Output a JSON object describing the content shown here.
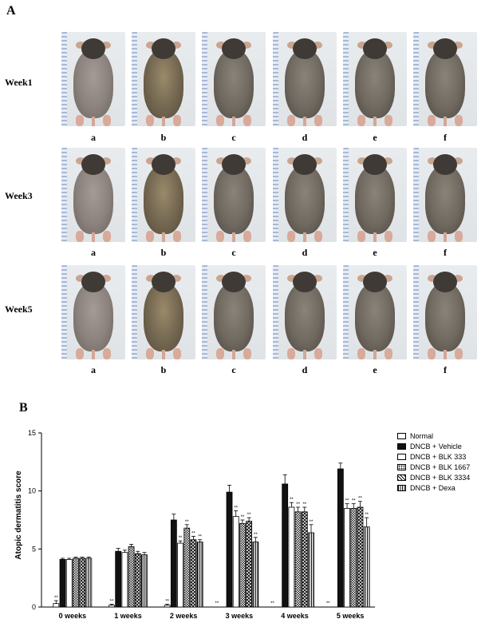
{
  "panel_a": {
    "letter": "A",
    "rows": [
      {
        "label": "Week1",
        "photos": [
          "a",
          "b",
          "c",
          "d",
          "e",
          "f"
        ]
      },
      {
        "label": "Week3",
        "photos": [
          "a",
          "b",
          "c",
          "d",
          "e",
          "f"
        ]
      },
      {
        "label": "Week5",
        "photos": [
          "a",
          "b",
          "c",
          "d",
          "e",
          "f"
        ]
      }
    ]
  },
  "panel_b": {
    "letter": "B"
  },
  "chart_data": {
    "type": "bar",
    "title": "",
    "xlabel": "",
    "ylabel": "Atopic dermatitis score",
    "ylim": [
      0,
      15
    ],
    "yticks": [
      0,
      5,
      10,
      15
    ],
    "categories": [
      "0 weeks",
      "1 weeks",
      "2 weeks",
      "3 weeks",
      "4 weeks",
      "5 weeks"
    ],
    "legend_position": "top-right",
    "series": [
      {
        "name": "Normal",
        "pattern": "open",
        "values": [
          0.3,
          0.15,
          0.15,
          0,
          0,
          0
        ],
        "errors": [
          0.25,
          0.1,
          0.1,
          0,
          0,
          0
        ],
        "sig": [
          "**",
          "**",
          "**",
          "**",
          "**",
          "**"
        ]
      },
      {
        "name": "DNCB + Vehicle",
        "pattern": "solid",
        "values": [
          4.1,
          4.8,
          7.5,
          9.9,
          10.6,
          11.9
        ],
        "errors": [
          0.1,
          0.25,
          0.5,
          0.6,
          0.8,
          0.5
        ],
        "sig": [
          "",
          "",
          "",
          "",
          "",
          ""
        ]
      },
      {
        "name": "DNCB + BLK 333",
        "pattern": "open",
        "values": [
          4.1,
          4.7,
          5.5,
          7.8,
          8.6,
          8.5
        ],
        "errors": [
          0.1,
          0.2,
          0.2,
          0.5,
          0.4,
          0.4
        ],
        "sig": [
          "",
          "",
          "**",
          "**",
          "**",
          "**"
        ]
      },
      {
        "name": "DNCB + BLK 1667",
        "pattern": "dots",
        "values": [
          4.2,
          5.2,
          6.8,
          7.2,
          8.2,
          8.5
        ],
        "errors": [
          0.1,
          0.2,
          0.3,
          0.3,
          0.4,
          0.4
        ],
        "sig": [
          "",
          "",
          "**",
          "**",
          "**",
          "**"
        ]
      },
      {
        "name": "DNCB + BLK 3334",
        "pattern": "cross",
        "values": [
          4.2,
          4.6,
          5.8,
          7.4,
          8.2,
          8.6
        ],
        "errors": [
          0.1,
          0.2,
          0.3,
          0.3,
          0.4,
          0.5
        ],
        "sig": [
          "",
          "",
          "**",
          "**",
          "**",
          "**"
        ]
      },
      {
        "name": "DNCB + Dexa",
        "pattern": "vlines",
        "values": [
          4.2,
          4.5,
          5.6,
          5.6,
          6.4,
          6.9
        ],
        "errors": [
          0.1,
          0.2,
          0.2,
          0.4,
          0.7,
          0.8
        ],
        "sig": [
          "",
          "",
          "**",
          "**",
          "**",
          "**"
        ]
      }
    ]
  }
}
